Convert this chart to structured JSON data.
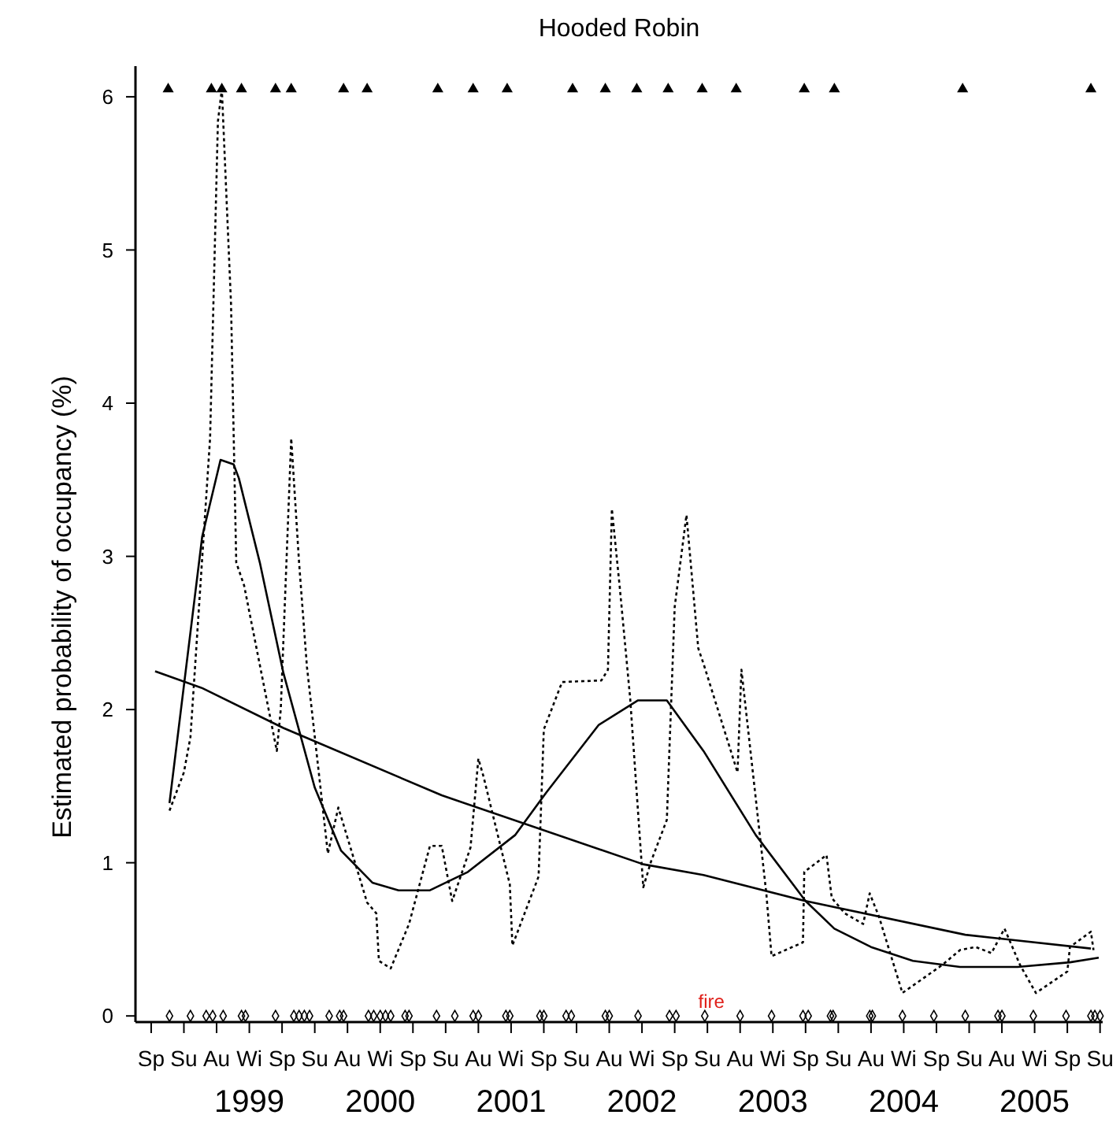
{
  "chart_data": {
    "type": "line",
    "title": "Hooded Robin",
    "ylabel": "Estimated probability of occupancy (%)",
    "xlim": [
      1998.13,
      2005.52
    ],
    "ylim": [
      -0.04,
      6.2
    ],
    "yticks": [
      0,
      1,
      2,
      3,
      4,
      5,
      6
    ],
    "xticks": [
      1999,
      2000,
      2001,
      2002,
      2003,
      2004,
      2005
    ],
    "grid": false,
    "annotations": [
      {
        "text": "fire",
        "x": 2002.53,
        "y": 0.05
      },
      "Sp",
      "Su",
      "Au",
      "Wi",
      "Sp",
      "Su",
      "Au",
      "Wi",
      "Sp",
      "Su",
      "Au",
      "Wi",
      "Sp",
      "Su",
      "Au",
      "Wi",
      "Sp",
      "Su",
      "Au",
      "Wi",
      "Sp",
      "Su",
      "Au",
      "Wi",
      "Sp",
      "Su",
      "Au",
      "Wi",
      "Sp",
      "Su"
    ],
    "series": [
      {
        "line_style": "dotted",
        "marker": "none",
        "color": "#000000",
        "x": [
          1998.39,
          1998.5,
          1998.55,
          1998.7,
          1998.76,
          1998.79,
          1998.86,
          1998.9,
          1998.96,
          1999.21,
          1999.24,
          1999.32,
          1999.38,
          1999.44,
          1999.6,
          1999.68,
          1999.9,
          1999.97,
          1999.99,
          2000.08,
          2000.22,
          2000.38,
          2000.47,
          2000.55,
          2000.69,
          2000.75,
          2000.79,
          2000.99,
          2001.01,
          2001.21,
          2001.25,
          2001.39,
          2001.69,
          2001.74,
          2001.77,
          2001.83,
          2001.91,
          2002.01,
          2002.07,
          2002.19,
          2002.25,
          2002.34,
          2002.43,
          2002.47,
          2002.73,
          2002.76,
          2002.95,
          2002.99,
          2003.23,
          2003.24,
          2003.41,
          2003.45,
          2003.55,
          2003.69,
          2003.74,
          2003.81,
          2003.99,
          2004.29,
          2004.43,
          2004.55,
          2004.67,
          2004.77,
          2004.89,
          2005.01,
          2005.25,
          2005.27,
          2005.43,
          2005.45
        ],
        "values": [
          1.34,
          1.59,
          1.82,
          3.77,
          5.84,
          6.05,
          4.65,
          2.96,
          2.81,
          1.73,
          2.0,
          3.77,
          2.96,
          2.28,
          1.06,
          1.36,
          0.74,
          0.67,
          0.36,
          0.31,
          0.6,
          1.11,
          1.11,
          0.75,
          1.1,
          1.68,
          1.56,
          0.86,
          0.46,
          0.91,
          1.87,
          2.18,
          2.19,
          2.26,
          3.31,
          2.8,
          2.07,
          0.84,
          1.01,
          1.28,
          2.67,
          3.27,
          2.4,
          2.3,
          1.59,
          2.26,
          0.8,
          0.39,
          0.48,
          0.94,
          1.05,
          0.77,
          0.67,
          0.6,
          0.8,
          0.65,
          0.15,
          0.33,
          0.43,
          0.45,
          0.41,
          0.57,
          0.33,
          0.15,
          0.29,
          0.45,
          0.55,
          0.43
        ]
      },
      {
        "line_style": "solid",
        "marker": "none",
        "color": "#000000",
        "x": [
          1998.39,
          1998.64,
          1998.78,
          1998.88,
          1998.92,
          1999.08,
          1999.26,
          1999.5,
          1999.7,
          1999.94,
          2000.14,
          2000.38,
          2000.67,
          2001.03,
          2001.27,
          2001.67,
          2001.97,
          2002.19,
          2002.47,
          2002.87,
          2003.25,
          2003.47,
          2003.75,
          2004.07,
          2004.43,
          2004.87,
          2005.27,
          2005.49
        ],
        "values": [
          1.39,
          3.13,
          3.63,
          3.6,
          3.51,
          2.96,
          2.24,
          1.49,
          1.08,
          0.87,
          0.82,
          0.82,
          0.94,
          1.18,
          1.46,
          1.9,
          2.06,
          2.06,
          1.73,
          1.18,
          0.75,
          0.57,
          0.45,
          0.36,
          0.32,
          0.32,
          0.35,
          0.38
        ]
      },
      {
        "line_style": "solid",
        "marker": "none",
        "color": "#000000",
        "x": [
          1998.28,
          1998.64,
          1999.26,
          2000.47,
          2002.01,
          2002.47,
          2003.25,
          2004.47,
          2005.43
        ],
        "values": [
          2.25,
          2.14,
          1.88,
          1.44,
          0.99,
          0.92,
          0.75,
          0.53,
          0.44
        ]
      },
      {
        "type": "scatter",
        "marker": "triangle",
        "color": "#000000",
        "x": [
          1998.38,
          1998.71,
          1998.79,
          1998.94,
          1999.2,
          1999.32,
          1999.72,
          1999.9,
          2000.44,
          2000.71,
          2000.97,
          2001.47,
          2001.72,
          2001.96,
          2002.2,
          2002.46,
          2002.72,
          2003.24,
          2003.47,
          2004.45,
          2005.43
        ],
        "values": [
          6.05,
          6.05,
          6.05,
          6.05,
          6.05,
          6.05,
          6.05,
          6.05,
          6.05,
          6.05,
          6.05,
          6.05,
          6.05,
          6.05,
          6.05,
          6.05,
          6.05,
          6.05,
          6.05,
          6.05,
          6.05
        ]
      },
      {
        "type": "scatter",
        "marker": "diamond",
        "color": "#000000",
        "x": [
          1998.39,
          1998.55,
          1998.67,
          1998.72,
          1998.8,
          1998.94,
          1998.97,
          1999.2,
          1999.34,
          1999.38,
          1999.42,
          1999.46,
          1999.61,
          1999.69,
          1999.72,
          1999.91,
          1999.95,
          2000.0,
          2000.04,
          2000.08,
          2000.19,
          2000.22,
          2000.43,
          2000.57,
          2000.71,
          2000.75,
          2000.96,
          2000.99,
          2001.22,
          2001.25,
          2001.42,
          2001.46,
          2001.72,
          2001.75,
          2001.97,
          2002.21,
          2002.26,
          2002.48,
          2002.75,
          2002.99,
          2003.23,
          2003.27,
          2003.44,
          2003.46,
          2003.74,
          2003.76,
          2003.99,
          2004.23,
          2004.47,
          2004.72,
          2004.75,
          2004.99,
          2005.24,
          2005.43,
          2005.46,
          2005.5
        ],
        "values": [
          0,
          0,
          0,
          0,
          0,
          0,
          0,
          0,
          0,
          0,
          0,
          0,
          0,
          0,
          0,
          0,
          0,
          0,
          0,
          0,
          0,
          0,
          0,
          0,
          0,
          0,
          0,
          0,
          0,
          0,
          0,
          0,
          0,
          0,
          0,
          0,
          0,
          0,
          0,
          0,
          0,
          0,
          0,
          0,
          0,
          0,
          0,
          0,
          0,
          0,
          0,
          0,
          0,
          0,
          0,
          0
        ]
      }
    ]
  }
}
